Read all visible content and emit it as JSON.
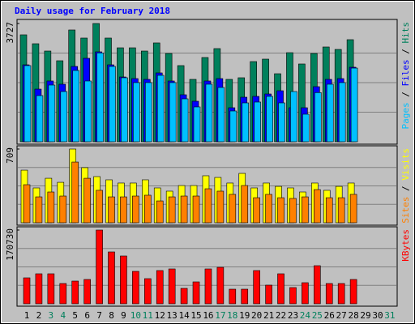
{
  "chart_data": [
    {
      "type": "bar",
      "title": "Daily usage for February 2018",
      "legend_separator": " / ",
      "ylim": [
        0,
        3727
      ],
      "yticks": [
        3727
      ],
      "series": [
        {
          "name": "Hits",
          "color": "#00805c",
          "values": [
            3370,
            3089,
            2859,
            2553,
            3523,
            3268,
            3727,
            3268,
            2961,
            2961,
            2859,
            3115,
            2783,
            2400,
            1966,
            2655,
            2936,
            1966,
            2017,
            2527,
            2604,
            2144,
            2808,
            2451,
            2783,
            2987,
            2910,
            3217,
            null,
            null,
            null
          ]
        },
        {
          "name": "Files",
          "color": "#0000ff",
          "values": [
            2425,
            1659,
            1915,
            1813,
            2374,
            2630,
            2834,
            2425,
            2042,
            1991,
            1966,
            2170,
            1915,
            1481,
            1277,
            1915,
            1991,
            1072,
            1404,
            1430,
            1506,
            1608,
            1072,
            1072,
            1736,
            1966,
            1991,
            2349,
            null,
            null,
            null
          ]
        },
        {
          "name": "Pages",
          "color": "#00c0ff",
          "values": [
            2400,
            1455,
            1787,
            1583,
            2247,
            1915,
            2800,
            2374,
            2017,
            1864,
            1864,
            2093,
            1864,
            1353,
            1098,
            1813,
            1711,
            970,
            1225,
            1251,
            1430,
            1225,
            1583,
            868,
            1550,
            1813,
            1864,
            2322,
            null,
            null,
            null
          ]
        }
      ]
    },
    {
      "type": "bar",
      "legend_separator": " / ",
      "ylim": [
        0,
        709
      ],
      "yticks": [
        709
      ],
      "series": [
        {
          "name": "Visits",
          "color": "#ffff00",
          "values": [
            506,
            335,
            428,
            389,
            709,
            530,
            444,
            413,
            382,
            382,
            413,
            335,
            304,
            358,
            358,
            452,
            436,
            382,
            475,
            335,
            382,
            350,
            335,
            296,
            382,
            312,
            350,
            382,
            null,
            null,
            null
          ]
        },
        {
          "name": "Sites",
          "color": "#ff8000",
          "values": [
            366,
            249,
            296,
            257,
            584,
            428,
            312,
            249,
            249,
            257,
            265,
            210,
            249,
            257,
            257,
            327,
            304,
            273,
            358,
            241,
            273,
            241,
            234,
            249,
            319,
            241,
            241,
            273,
            null,
            null,
            null
          ]
        }
      ]
    },
    {
      "type": "bar",
      "ylim": [
        0,
        170730
      ],
      "yticks": [
        170730
      ],
      "series": [
        {
          "name": "KBytes",
          "color": "#ff0000",
          "values": [
            60032,
            69412,
            69412,
            46900,
            52528,
            56280,
            170730,
            120064,
            110684,
            75040,
            58156,
            76916,
            80668,
            35644,
            50652,
            80668,
            84420,
            33768,
            33768,
            76916,
            43148,
            69412,
            37520,
            48776,
            88172,
            46900,
            46900,
            56280,
            null,
            null,
            null
          ]
        }
      ],
      "categories": [
        "1",
        "2",
        "3",
        "4",
        "5",
        "6",
        "7",
        "8",
        "9",
        "10",
        "11",
        "12",
        "13",
        "14",
        "15",
        "16",
        "17",
        "18",
        "19",
        "20",
        "21",
        "22",
        "23",
        "24",
        "25",
        "26",
        "27",
        "28",
        "29",
        "30",
        "31"
      ],
      "category_colors": [
        "#000000",
        "#000000",
        "#00805c",
        "#00805c",
        "#000000",
        "#000000",
        "#000000",
        "#000000",
        "#000000",
        "#00805c",
        "#00805c",
        "#000000",
        "#000000",
        "#000000",
        "#000000",
        "#000000",
        "#00805c",
        "#00805c",
        "#000000",
        "#000000",
        "#000000",
        "#000000",
        "#000000",
        "#00805c",
        "#00805c",
        "#000000",
        "#000000",
        "#000000",
        "#000000",
        "#000000",
        "#00805c"
      ]
    }
  ]
}
